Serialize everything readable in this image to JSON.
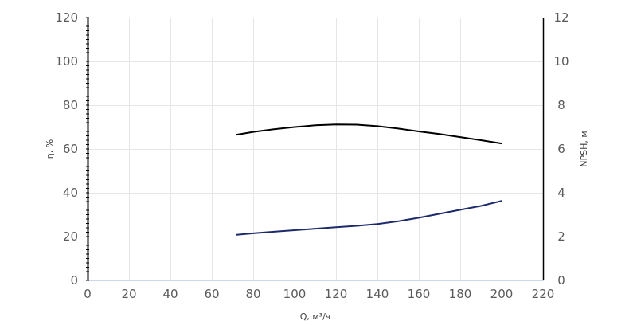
{
  "chart_data": {
    "type": "line",
    "xlabel": "Q, м³/ч",
    "ylabel": "η, %",
    "y2label": "NPSH, м",
    "xlim": [
      0,
      220
    ],
    "ylim": [
      0,
      120
    ],
    "y2lim": [
      0,
      12
    ],
    "x_ticks": [
      "0",
      "20",
      "40",
      "60",
      "80",
      "100",
      "120",
      "140",
      "160",
      "180",
      "200",
      "220"
    ],
    "y_ticks": [
      "0",
      "20",
      "40",
      "60",
      "80",
      "100",
      "120"
    ],
    "y2_ticks": [
      "0",
      "2",
      "4",
      "6",
      "8",
      "10",
      "12"
    ],
    "grid": true,
    "series": [
      {
        "axis": "left",
        "color": "#000000",
        "x": [
          72,
          80,
          90,
          100,
          110,
          120,
          130,
          140,
          150,
          160,
          170,
          180,
          190,
          200
        ],
        "y": [
          66.5,
          67.8,
          69.0,
          70.0,
          70.8,
          71.2,
          71.1,
          70.4,
          69.3,
          68.0,
          66.8,
          65.4,
          64.0,
          62.5
        ]
      },
      {
        "axis": "right",
        "color": "#1c2a6b",
        "x": [
          72,
          80,
          90,
          100,
          110,
          120,
          130,
          140,
          150,
          160,
          170,
          180,
          190,
          200
        ],
        "y": [
          2.08,
          2.15,
          2.22,
          2.29,
          2.36,
          2.43,
          2.49,
          2.57,
          2.7,
          2.86,
          3.04,
          3.22,
          3.4,
          3.63
        ]
      }
    ]
  }
}
